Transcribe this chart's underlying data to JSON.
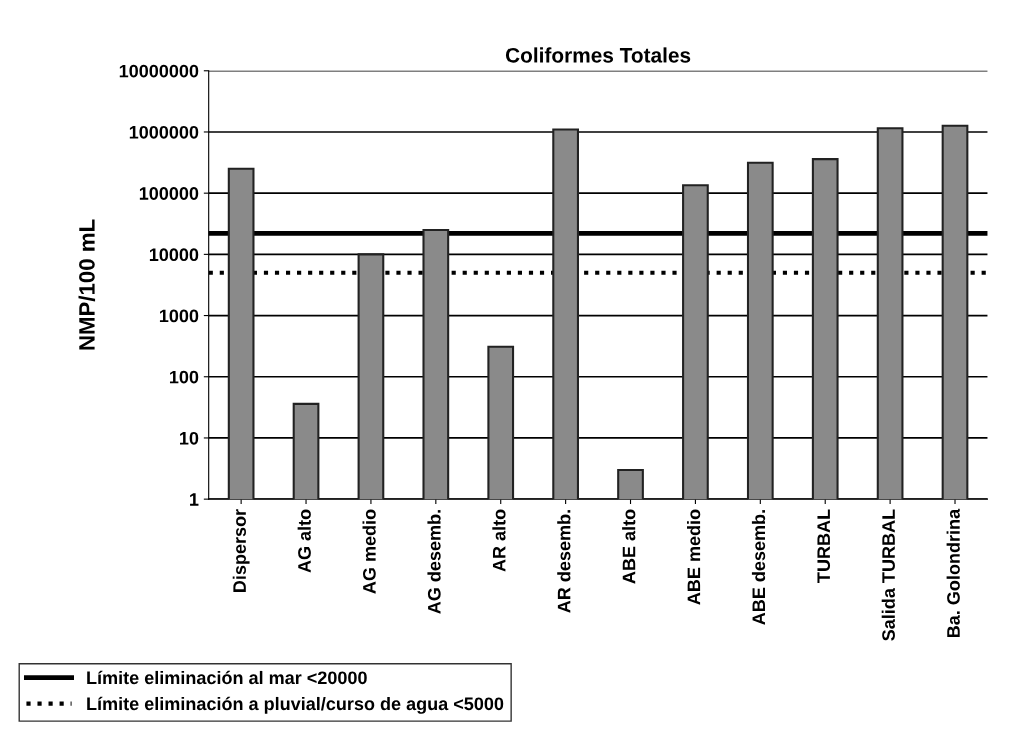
{
  "chart_data": {
    "type": "bar",
    "title": "Coliformes Totales",
    "ylabel": "NMP/100 mL",
    "categories": [
      "Dispersor",
      "AG alto",
      "AG medio",
      "AG desemb.",
      "AR alto",
      "AR desemb.",
      "ABE alto",
      "ABE medio",
      "ABE desemb.",
      "TURBAL",
      "Salida TURBAL",
      "Ba. Golondrina"
    ],
    "values": [
      250000,
      36,
      10000,
      25000,
      310,
      1100000,
      3,
      135000,
      315000,
      360000,
      1150000,
      1260000
    ],
    "color": "#8a8a8a",
    "log": "y",
    "ylim": [
      1,
      10000000
    ],
    "yticks": [
      1,
      10,
      100,
      1000,
      10000,
      100000,
      1000000,
      10000000
    ],
    "grid": "y",
    "legend": "bottom",
    "ref_lines": [
      {
        "axis": "y",
        "value": 22000,
        "label": "Límite eliminación al mar <20000",
        "color": "#000000",
        "line_style": "solid"
      },
      {
        "axis": "y",
        "value": 5000,
        "label": "Límite eliminación a pluvial/curso de agua <5000",
        "color": "#000000",
        "line_style": "dotted"
      }
    ]
  }
}
